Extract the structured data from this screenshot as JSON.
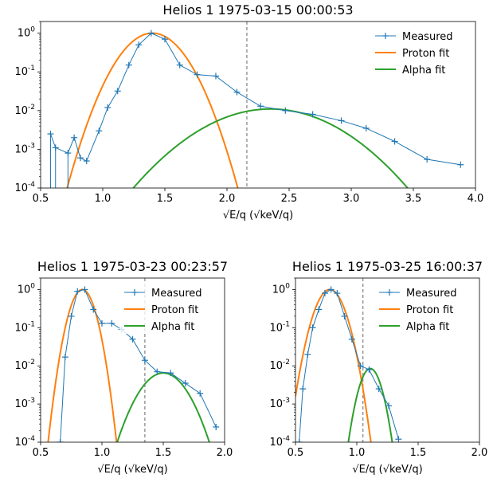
{
  "chart_data": [
    {
      "type": "line",
      "title": "Helios 1 1975-03-15 00:00:53",
      "xlabel": "√E/q (√keV/q)",
      "ylabel": "",
      "xscale": "linear",
      "yscale": "log",
      "xlim": [
        0.5,
        4.0
      ],
      "ylim": [
        0.0001,
        2
      ],
      "xticks": [
        "0.5",
        "1.0",
        "1.5",
        "2.0",
        "2.5",
        "3.0",
        "3.5",
        "4.0"
      ],
      "yticks": [
        "10^-4",
        "10^-3",
        "10^-2",
        "10^-1",
        "10^0"
      ],
      "legend": "top-right",
      "vline": 2.16,
      "measured": {
        "name": "Measured",
        "x": [
          0.58,
          0.62,
          0.72,
          0.77,
          0.82,
          0.87,
          0.97,
          1.04,
          1.12,
          1.21,
          1.29,
          1.39,
          1.5,
          1.62,
          1.76,
          1.91,
          2.08,
          2.27,
          2.47,
          2.69,
          2.92,
          3.12,
          3.35,
          3.61,
          3.88
        ],
        "y": [
          0.0025,
          0.0011,
          0.0008,
          0.002,
          0.0006,
          0.0005,
          0.003,
          0.012,
          0.032,
          0.15,
          0.5,
          1.0,
          0.7,
          0.15,
          0.085,
          0.078,
          0.03,
          0.013,
          0.01,
          0.008,
          0.0055,
          0.0035,
          0.0016,
          0.00055,
          0.0004
        ],
        "color": "#1f77b4"
      },
      "proton_fit": {
        "name": "Proton fit",
        "peak_x": 1.4,
        "peak_y": 1.0,
        "sigma": 0.16,
        "color": "#ff7f0e"
      },
      "alpha_fit": {
        "name": "Alpha fit",
        "peak_x": 2.35,
        "peak_y": 0.011,
        "sigma": 0.36,
        "color": "#2ca02c"
      }
    },
    {
      "type": "line",
      "title": "Helios 1 1975-03-23 00:23:57",
      "xlabel": "√E/q (√keV/q)",
      "ylabel": "",
      "xscale": "linear",
      "yscale": "log",
      "xlim": [
        0.5,
        2.0
      ],
      "ylim": [
        0.0001,
        2
      ],
      "xticks": [
        "0.5",
        "1.0",
        "1.5",
        "2.0"
      ],
      "yticks": [
        "10^-4",
        "10^-3",
        "10^-2",
        "10^-1",
        "10^0"
      ],
      "legend": "top-right",
      "vline": 1.35,
      "measured": {
        "name": "Measured",
        "x": [
          0.66,
          0.7,
          0.75,
          0.8,
          0.86,
          0.93,
          1.0,
          1.08,
          1.16,
          1.25,
          1.35,
          1.45,
          1.56,
          1.68,
          1.8,
          1.93
        ],
        "y": [
          0.0001,
          0.017,
          0.2,
          0.9,
          1.0,
          0.3,
          0.13,
          0.13,
          0.09,
          0.05,
          0.014,
          0.007,
          0.0065,
          0.0035,
          0.0019,
          0.00025
        ],
        "color": "#1f77b4"
      },
      "proton_fit": {
        "name": "Proton fit",
        "peak_x": 0.84,
        "peak_y": 1.0,
        "sigma": 0.065,
        "color": "#ff7f0e"
      },
      "alpha_fit": {
        "name": "Alpha fit",
        "peak_x": 1.5,
        "peak_y": 0.0065,
        "sigma": 0.13,
        "color": "#2ca02c"
      }
    },
    {
      "type": "line",
      "title": "Helios 1 1975-03-25 16:00:37",
      "xlabel": "√E/q (√keV/q)",
      "ylabel": "",
      "xscale": "linear",
      "yscale": "log",
      "xlim": [
        0.5,
        2.0
      ],
      "ylim": [
        0.0001,
        2
      ],
      "xticks": [
        "0.5",
        "1.0",
        "1.5",
        "2.0"
      ],
      "yticks": [
        "10^-4",
        "10^-3",
        "10^-2",
        "10^-1",
        "10^0"
      ],
      "legend": "top-right",
      "vline": 1.05,
      "measured": {
        "name": "Measured",
        "x": [
          0.53,
          0.56,
          0.6,
          0.64,
          0.69,
          0.74,
          0.79,
          0.84,
          0.9,
          0.96,
          1.03,
          1.1,
          1.18,
          1.26,
          1.34
        ],
        "y": [
          0.0001,
          0.0025,
          0.02,
          0.1,
          0.3,
          0.8,
          1.0,
          0.8,
          0.2,
          0.05,
          0.01,
          0.008,
          0.0025,
          0.0009,
          0.00012
        ],
        "color": "#1f77b4"
      },
      "proton_fit": {
        "name": "Proton fit",
        "peak_x": 0.78,
        "peak_y": 1.0,
        "sigma": 0.078,
        "color": "#ff7f0e"
      },
      "alpha_fit": {
        "name": "Alpha fit",
        "peak_x": 1.11,
        "peak_y": 0.0085,
        "sigma": 0.06,
        "color": "#2ca02c"
      }
    }
  ]
}
